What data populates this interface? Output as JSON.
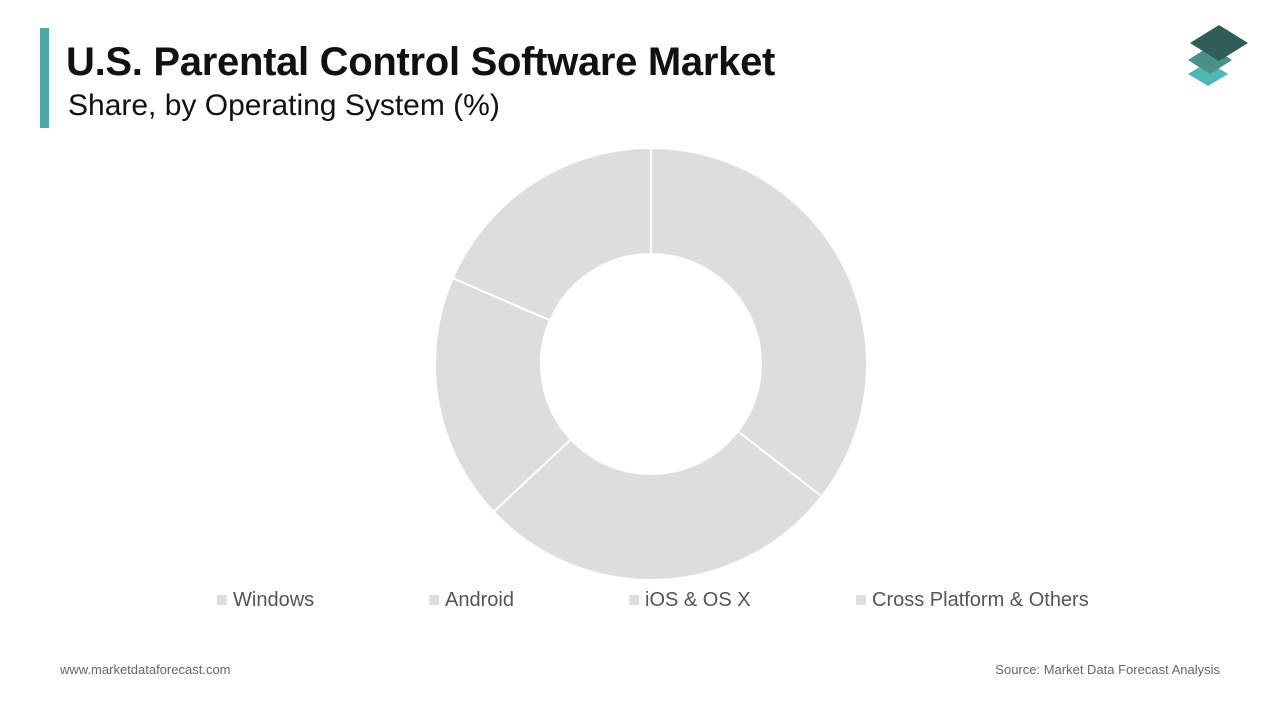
{
  "header": {
    "title": "U.S. Parental Control Software Market",
    "subtitle": "Share, by Operating System (%)"
  },
  "colors": {
    "accent": "#4aa8a6",
    "logo_top": "#2f5e58",
    "logo_mid": "#4a8f88",
    "logo_bottom": "#4fb8b4",
    "slice": "#dddddd",
    "slice_border": "#ffffff",
    "legend_swatch": "#dddddd"
  },
  "chart_data": {
    "type": "pie",
    "variant": "donut",
    "categories": [
      "Windows",
      "Android",
      "iOS & OS X",
      "Cross Platform & Others"
    ],
    "values": [
      35.5,
      27.5,
      18.5,
      18.5
    ],
    "unit": "%",
    "legend_position": "bottom"
  },
  "legend": {
    "items": [
      {
        "label": "Windows"
      },
      {
        "label": "Android"
      },
      {
        "label": "iOS & OS X"
      },
      {
        "label": "Cross Platform & Others"
      }
    ]
  },
  "footer": {
    "website": "www.marketdataforecast.com",
    "source": "Source: Market Data Forecast Analysis"
  }
}
